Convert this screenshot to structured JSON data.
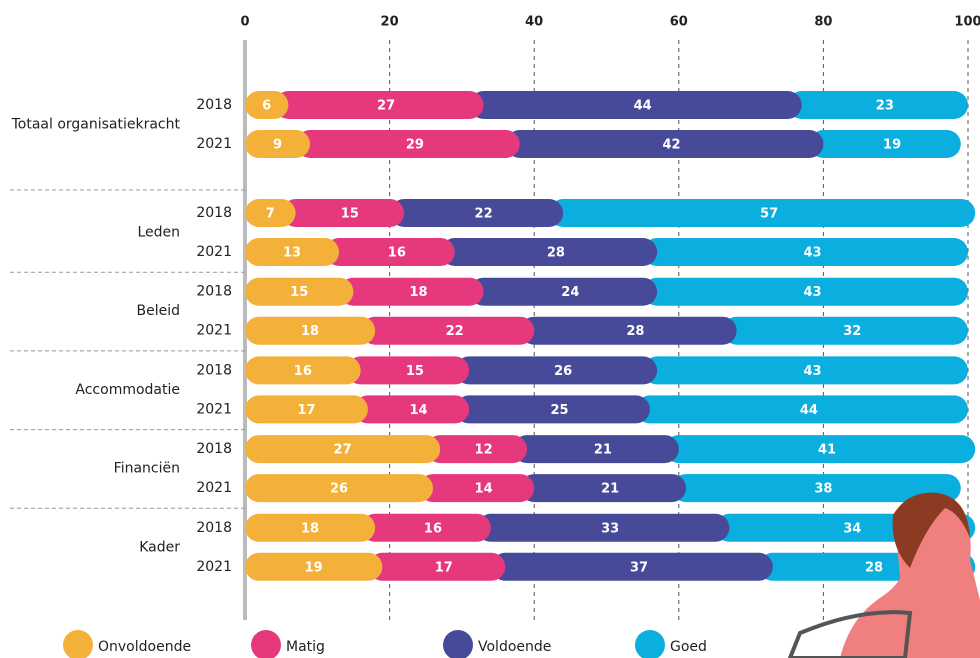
{
  "chart_data": {
    "type": "stacked-bar",
    "groups": [
      "Totaal organisatiekracht",
      "Leden",
      "Beleid",
      "Accommodatie",
      "Financiën",
      "Kader"
    ],
    "categories": [
      "2018",
      "2021",
      "2018",
      "2021",
      "2018",
      "2021",
      "2018",
      "2021",
      "2018",
      "2021",
      "2018",
      "2021"
    ],
    "series": [
      {
        "name": "Onvoldoende",
        "color": "#f4b13a",
        "values": [
          6,
          9,
          7,
          13,
          15,
          18,
          16,
          17,
          27,
          26,
          18,
          19
        ]
      },
      {
        "name": "Matig",
        "color": "#e6397d",
        "values": [
          27,
          29,
          15,
          16,
          18,
          22,
          15,
          14,
          12,
          14,
          16,
          17
        ]
      },
      {
        "name": "Voldoende",
        "color": "#474a99",
        "values": [
          44,
          42,
          22,
          28,
          24,
          28,
          26,
          25,
          21,
          21,
          33,
          37
        ]
      },
      {
        "name": "Goed",
        "color": "#0aaedf",
        "values": [
          23,
          19,
          57,
          43,
          43,
          32,
          43,
          44,
          41,
          38,
          34,
          28
        ]
      }
    ],
    "xlim": [
      0,
      100
    ],
    "xticks": [
      0,
      20,
      40,
      60,
      80,
      100
    ],
    "grid": true
  }
}
